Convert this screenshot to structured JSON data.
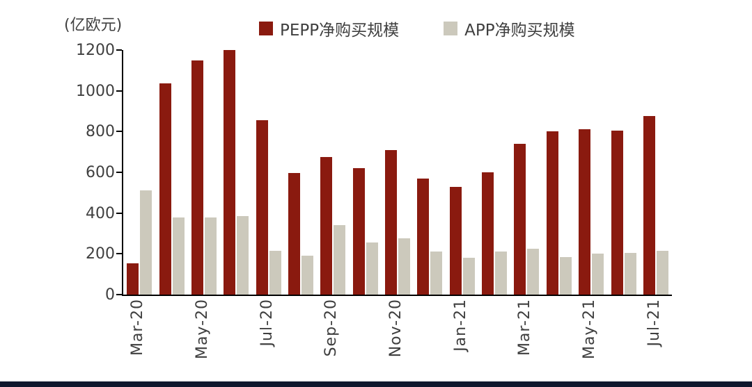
{
  "unit_label": "(亿欧元)",
  "chart_data": {
    "type": "bar",
    "title": "",
    "ylabel": "(亿欧元)",
    "xlabel": "",
    "ylim": [
      0,
      1200
    ],
    "y_ticks": [
      0,
      200,
      400,
      600,
      800,
      1000,
      1200
    ],
    "grid": false,
    "legend_position": "top",
    "categories": [
      "Mar-20",
      "Apr-20",
      "May-20",
      "Jun-20",
      "Jul-20",
      "Aug-20",
      "Sep-20",
      "Oct-20",
      "Nov-20",
      "Dec-20",
      "Jan-21",
      "Feb-21",
      "Mar-21",
      "Apr-21",
      "May-21",
      "Jun-21",
      "Jul-21"
    ],
    "x_tick_labels": [
      "Mar-20",
      "",
      "May-20",
      "",
      "Jul-20",
      "",
      "Sep-20",
      "",
      "Nov-20",
      "",
      "Jan-21",
      "",
      "Mar-21",
      "",
      "May-21",
      "",
      "Jul-21"
    ],
    "series": [
      {
        "key": "pepp",
        "name": "PEPP净购买规模",
        "color": "#8a1a0f",
        "values": [
          155,
          1035,
          1150,
          1200,
          855,
          595,
          675,
          620,
          710,
          570,
          530,
          600,
          740,
          800,
          810,
          805,
          875
        ]
      },
      {
        "key": "app",
        "name": "APP净购买规模",
        "color": "#ccc9bc",
        "values": [
          510,
          380,
          380,
          385,
          215,
          190,
          340,
          255,
          275,
          210,
          180,
          210,
          225,
          185,
          200,
          205,
          215
        ]
      }
    ]
  }
}
